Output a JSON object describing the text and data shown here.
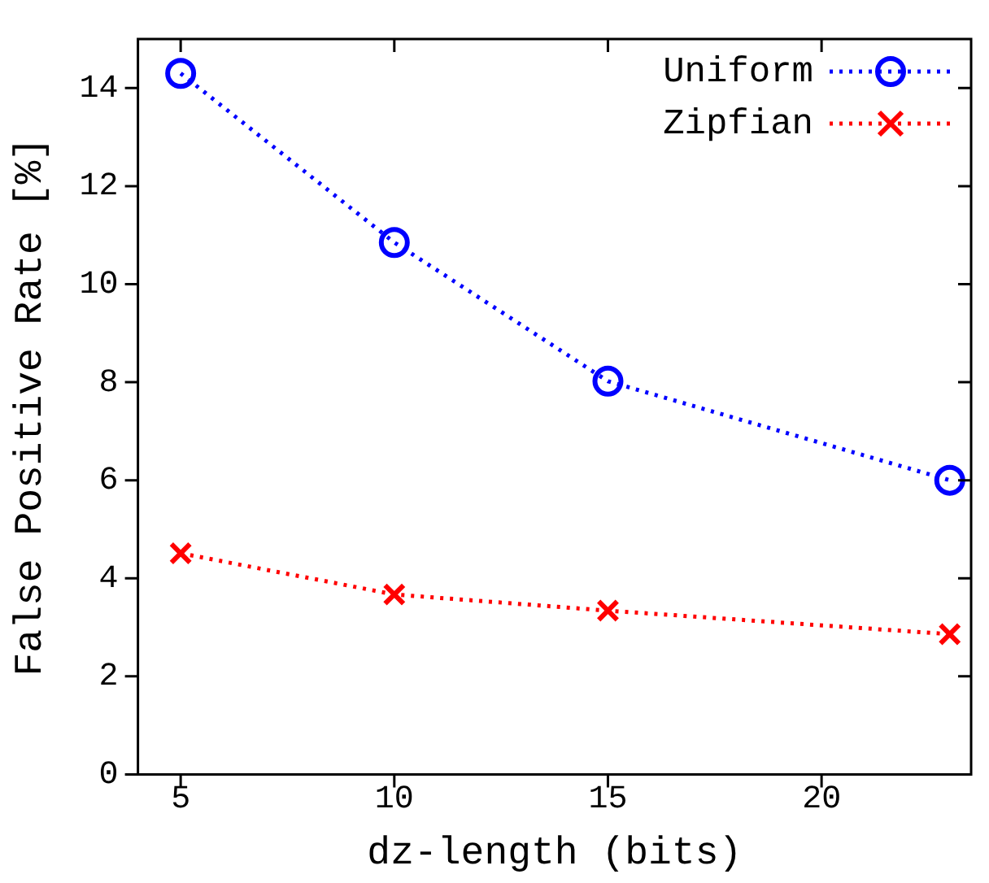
{
  "chart_data": {
    "type": "line",
    "xlabel": "dz-length (bits)",
    "ylabel": "False Positive Rate [%]",
    "x": [
      5,
      10,
      15,
      23
    ],
    "series": [
      {
        "name": "Uniform",
        "color": "#0000ff",
        "values": [
          14.3,
          10.85,
          8.02,
          6.0
        ],
        "marker": "circle"
      },
      {
        "name": "Zipfian",
        "color": "#ff0000",
        "values": [
          4.51,
          3.67,
          3.34,
          2.86
        ],
        "marker": "cross"
      }
    ],
    "xlim": [
      4,
      23.5
    ],
    "xticks": [
      5,
      10,
      15,
      20
    ],
    "ylim": [
      0,
      15
    ],
    "yticks": [
      0,
      2,
      4,
      6,
      8,
      10,
      12,
      14
    ],
    "line_style": "dotted",
    "grid": false,
    "legend": "top right"
  }
}
